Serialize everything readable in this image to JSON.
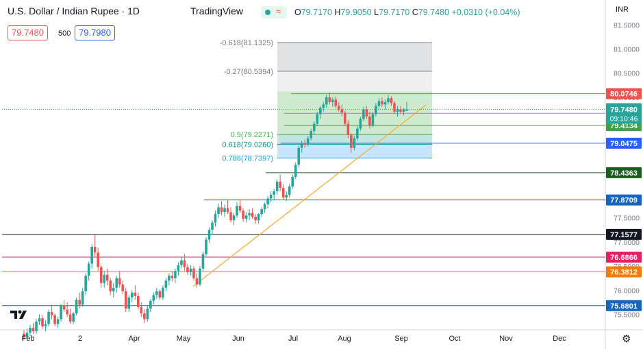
{
  "header": {
    "title": "U.S. Dollar / Indian Rupee · 1D",
    "brand": "TradingView",
    "open_label": "O",
    "open": "79.7170",
    "high_label": "H",
    "high": "79.9050",
    "low_label": "L",
    "low": "79.7170",
    "close_label": "C",
    "close": "79.7480",
    "change": "+0.0310 (+0.04%)"
  },
  "trade": {
    "sell": "79.7480",
    "spread": "500",
    "buy": "79.7980"
  },
  "currency_label": "INR",
  "colors": {
    "up": "#26a69a",
    "down": "#ef5350",
    "accent": "#2962ff"
  },
  "chart_data": {
    "type": "candlestick",
    "symbol": "USDINR",
    "timeframe": "1D",
    "ylim": [
      75.18,
      81.66
    ],
    "y_ticks": [
      "81.5000",
      "81.0000",
      "80.5000",
      "80.0000",
      "77.5000",
      "77.0000",
      "76.5000",
      "76.0000",
      "75.5000"
    ],
    "x_ticks": [
      "Feb",
      "2",
      "Apr",
      "May",
      "Jun",
      "Jul",
      "Aug",
      "Sep",
      "Oct",
      "Nov",
      "Dec"
    ],
    "candles": [
      [
        75.1,
        75.18,
        74.96,
        75.02
      ],
      [
        75.02,
        75.2,
        74.98,
        75.12
      ],
      [
        75.12,
        75.28,
        75.05,
        75.22
      ],
      [
        75.22,
        75.32,
        75.1,
        75.15
      ],
      [
        75.15,
        75.4,
        75.1,
        75.35
      ],
      [
        75.35,
        75.5,
        75.28,
        75.42
      ],
      [
        75.42,
        75.48,
        75.2,
        75.25
      ],
      [
        75.25,
        75.38,
        75.15,
        75.3
      ],
      [
        75.3,
        75.6,
        75.25,
        75.55
      ],
      [
        75.55,
        75.7,
        75.4,
        75.48
      ],
      [
        75.48,
        75.52,
        75.25,
        75.3
      ],
      [
        75.3,
        75.45,
        75.22,
        75.4
      ],
      [
        75.4,
        75.72,
        75.35,
        75.68
      ],
      [
        75.68,
        75.8,
        75.55,
        75.6
      ],
      [
        75.6,
        75.75,
        75.45,
        75.5
      ],
      [
        75.5,
        75.62,
        75.3,
        75.35
      ],
      [
        75.35,
        75.55,
        75.3,
        75.52
      ],
      [
        75.52,
        75.85,
        75.48,
        75.8
      ],
      [
        75.8,
        75.95,
        75.62,
        75.7
      ],
      [
        75.7,
        76.05,
        75.66,
        75.98
      ],
      [
        75.98,
        76.35,
        75.9,
        76.3
      ],
      [
        76.3,
        76.6,
        76.2,
        76.55
      ],
      [
        76.55,
        76.95,
        76.45,
        76.9
      ],
      [
        76.9,
        77.15,
        76.7,
        76.78
      ],
      [
        76.78,
        76.88,
        76.4,
        76.48
      ],
      [
        76.48,
        76.52,
        76.05,
        76.15
      ],
      [
        76.15,
        76.4,
        76.05,
        76.32
      ],
      [
        76.32,
        76.45,
        76.1,
        76.2
      ],
      [
        76.2,
        76.25,
        75.9,
        75.98
      ],
      [
        75.98,
        76.15,
        75.85,
        76.05
      ],
      [
        76.05,
        76.3,
        75.95,
        76.25
      ],
      [
        76.25,
        76.4,
        76.05,
        76.12
      ],
      [
        76.12,
        76.2,
        75.92,
        75.98
      ],
      [
        75.98,
        76.05,
        75.55,
        75.62
      ],
      [
        75.62,
        75.9,
        75.55,
        75.85
      ],
      [
        75.85,
        76.0,
        75.75,
        75.95
      ],
      [
        75.95,
        76.1,
        75.8,
        75.88
      ],
      [
        75.88,
        75.95,
        75.6,
        75.65
      ],
      [
        75.65,
        75.75,
        75.45,
        75.52
      ],
      [
        75.52,
        75.6,
        75.32,
        75.4
      ],
      [
        75.4,
        75.68,
        75.35,
        75.62
      ],
      [
        75.62,
        75.82,
        75.55,
        75.78
      ],
      [
        75.78,
        75.95,
        75.7,
        75.9
      ],
      [
        75.9,
        76.05,
        75.82,
        75.98
      ],
      [
        75.98,
        76.02,
        75.8,
        75.85
      ],
      [
        75.85,
        76.1,
        75.8,
        76.05
      ],
      [
        76.05,
        76.25,
        75.98,
        76.2
      ],
      [
        76.2,
        76.35,
        76.1,
        76.3
      ],
      [
        76.3,
        76.4,
        76.18,
        76.25
      ],
      [
        76.25,
        76.45,
        76.15,
        76.4
      ],
      [
        76.4,
        76.58,
        76.3,
        76.52
      ],
      [
        76.52,
        76.7,
        76.45,
        76.62
      ],
      [
        76.62,
        76.75,
        76.4,
        76.48
      ],
      [
        76.48,
        76.55,
        76.32,
        76.38
      ],
      [
        76.38,
        76.52,
        76.3,
        76.45
      ],
      [
        76.45,
        76.5,
        76.2,
        76.25
      ],
      [
        76.25,
        76.35,
        76.05,
        76.12
      ],
      [
        76.12,
        76.5,
        76.08,
        76.45
      ],
      [
        76.45,
        76.8,
        76.4,
        76.75
      ],
      [
        76.75,
        77.1,
        76.7,
        77.05
      ],
      [
        77.05,
        77.3,
        76.98,
        77.25
      ],
      [
        77.25,
        77.45,
        77.15,
        77.4
      ],
      [
        77.4,
        77.65,
        77.32,
        77.58
      ],
      [
        77.58,
        77.8,
        77.5,
        77.72
      ],
      [
        77.72,
        77.85,
        77.55,
        77.62
      ],
      [
        77.62,
        77.78,
        77.52,
        77.7
      ],
      [
        77.7,
        77.88,
        77.58,
        77.62
      ],
      [
        77.62,
        77.72,
        77.4,
        77.45
      ],
      [
        77.45,
        77.6,
        77.35,
        77.55
      ],
      [
        77.55,
        77.82,
        77.5,
        77.75
      ],
      [
        77.75,
        77.88,
        77.6,
        77.65
      ],
      [
        77.65,
        77.7,
        77.42,
        77.48
      ],
      [
        77.48,
        77.62,
        77.4,
        77.55
      ],
      [
        77.55,
        77.68,
        77.45,
        77.6
      ],
      [
        77.6,
        77.7,
        77.48,
        77.52
      ],
      [
        77.52,
        77.58,
        77.38,
        77.45
      ],
      [
        77.45,
        77.6,
        77.38,
        77.58
      ],
      [
        77.58,
        77.72,
        77.52,
        77.68
      ],
      [
        77.68,
        77.82,
        77.6,
        77.78
      ],
      [
        77.78,
        77.95,
        77.7,
        77.9
      ],
      [
        77.9,
        78.05,
        77.82,
        77.98
      ],
      [
        77.98,
        78.1,
        77.88,
        78.05
      ],
      [
        78.05,
        78.3,
        77.98,
        78.25
      ],
      [
        78.25,
        78.4,
        78.05,
        78.12
      ],
      [
        78.12,
        78.2,
        77.88,
        77.92
      ],
      [
        77.92,
        78.05,
        77.85,
        77.98
      ],
      [
        77.98,
        78.2,
        77.92,
        78.15
      ],
      [
        78.15,
        78.4,
        78.1,
        78.35
      ],
      [
        78.35,
        78.65,
        78.3,
        78.6
      ],
      [
        78.6,
        79.0,
        78.55,
        78.95
      ],
      [
        78.95,
        79.1,
        78.85,
        79.05
      ],
      [
        79.05,
        79.12,
        78.95,
        79.02
      ],
      [
        79.02,
        79.2,
        78.98,
        79.15
      ],
      [
        79.15,
        79.35,
        79.1,
        79.3
      ],
      [
        79.3,
        79.5,
        79.22,
        79.45
      ],
      [
        79.45,
        79.7,
        79.4,
        79.65
      ],
      [
        79.65,
        79.82,
        79.55,
        79.78
      ],
      [
        79.78,
        79.9,
        79.7,
        79.85
      ],
      [
        79.85,
        80.05,
        79.78,
        80.0
      ],
      [
        80.0,
        80.1,
        79.85,
        79.9
      ],
      [
        79.9,
        80.0,
        79.8,
        79.95
      ],
      [
        79.95,
        80.02,
        79.78,
        79.82
      ],
      [
        79.82,
        79.9,
        79.7,
        79.75
      ],
      [
        79.75,
        79.85,
        79.6,
        79.68
      ],
      [
        79.68,
        79.72,
        79.4,
        79.45
      ],
      [
        79.45,
        79.52,
        79.15,
        79.22
      ],
      [
        79.22,
        79.25,
        78.85,
        78.95
      ],
      [
        78.95,
        79.2,
        78.9,
        79.15
      ],
      [
        79.15,
        79.4,
        79.1,
        79.35
      ],
      [
        79.35,
        79.6,
        79.3,
        79.55
      ],
      [
        79.55,
        79.8,
        79.5,
        79.75
      ],
      [
        79.75,
        79.82,
        79.55,
        79.6
      ],
      [
        79.6,
        79.7,
        79.35,
        79.42
      ],
      [
        79.42,
        79.7,
        79.38,
        79.65
      ],
      [
        79.65,
        79.88,
        79.6,
        79.82
      ],
      [
        79.82,
        79.98,
        79.75,
        79.92
      ],
      [
        79.92,
        80.0,
        79.8,
        79.85
      ],
      [
        79.85,
        79.95,
        79.75,
        79.9
      ],
      [
        79.9,
        80.05,
        79.85,
        79.98
      ],
      [
        79.98,
        80.02,
        79.82,
        79.88
      ],
      [
        79.88,
        79.92,
        79.65,
        79.7
      ],
      [
        79.7,
        79.82,
        79.6,
        79.75
      ],
      [
        79.75,
        79.82,
        79.65,
        79.7
      ],
      [
        79.7,
        79.78,
        79.62,
        79.75
      ],
      [
        79.717,
        79.905,
        79.717,
        79.748
      ]
    ],
    "annotations": [
      {
        "label": "-0.618(81.1325)",
        "value": 81.1325,
        "color": "#787b86"
      },
      {
        "label": "-0.27(80.5394)",
        "value": 80.5394,
        "color": "#787b86"
      },
      {
        "label": "0.5(79.2271)",
        "value": 79.2271,
        "color": "#4caf50"
      },
      {
        "label": "0.618(79.0260)",
        "value": 79.026,
        "color": "#089981"
      },
      {
        "label": "0.786(78.7397)",
        "value": 78.7397,
        "color": "#2196f3"
      }
    ],
    "price_levels": [
      {
        "label": "80.0746",
        "value": 80.0746,
        "color": "#ef5350"
      },
      {
        "label": "79.6666",
        "value": 79.6666,
        "color": "#9c7ddc"
      },
      {
        "label": "79.4134",
        "value": 79.4134,
        "color": "#43a047"
      },
      {
        "label": "79.0475",
        "value": 79.0475,
        "color": "#2962ff"
      },
      {
        "label": "78.4363",
        "value": 78.4363,
        "color": "#1b5e20"
      },
      {
        "label": "77.8709",
        "value": 77.8709,
        "color": "#1565c0"
      },
      {
        "label": "77.1577",
        "value": 77.1577,
        "color": "#131722"
      },
      {
        "label": "76.6866",
        "value": 76.6866,
        "color": "#e91e63"
      },
      {
        "label": "76.3812",
        "value": 76.3812,
        "color": "#f57c00"
      },
      {
        "label": "75.6801",
        "value": 75.6801,
        "color": "#1565c0"
      }
    ],
    "current_price_label": "79.7480",
    "countdown": "09:10:46",
    "trendline_label": "",
    "trendline_color": "#ffa726"
  }
}
